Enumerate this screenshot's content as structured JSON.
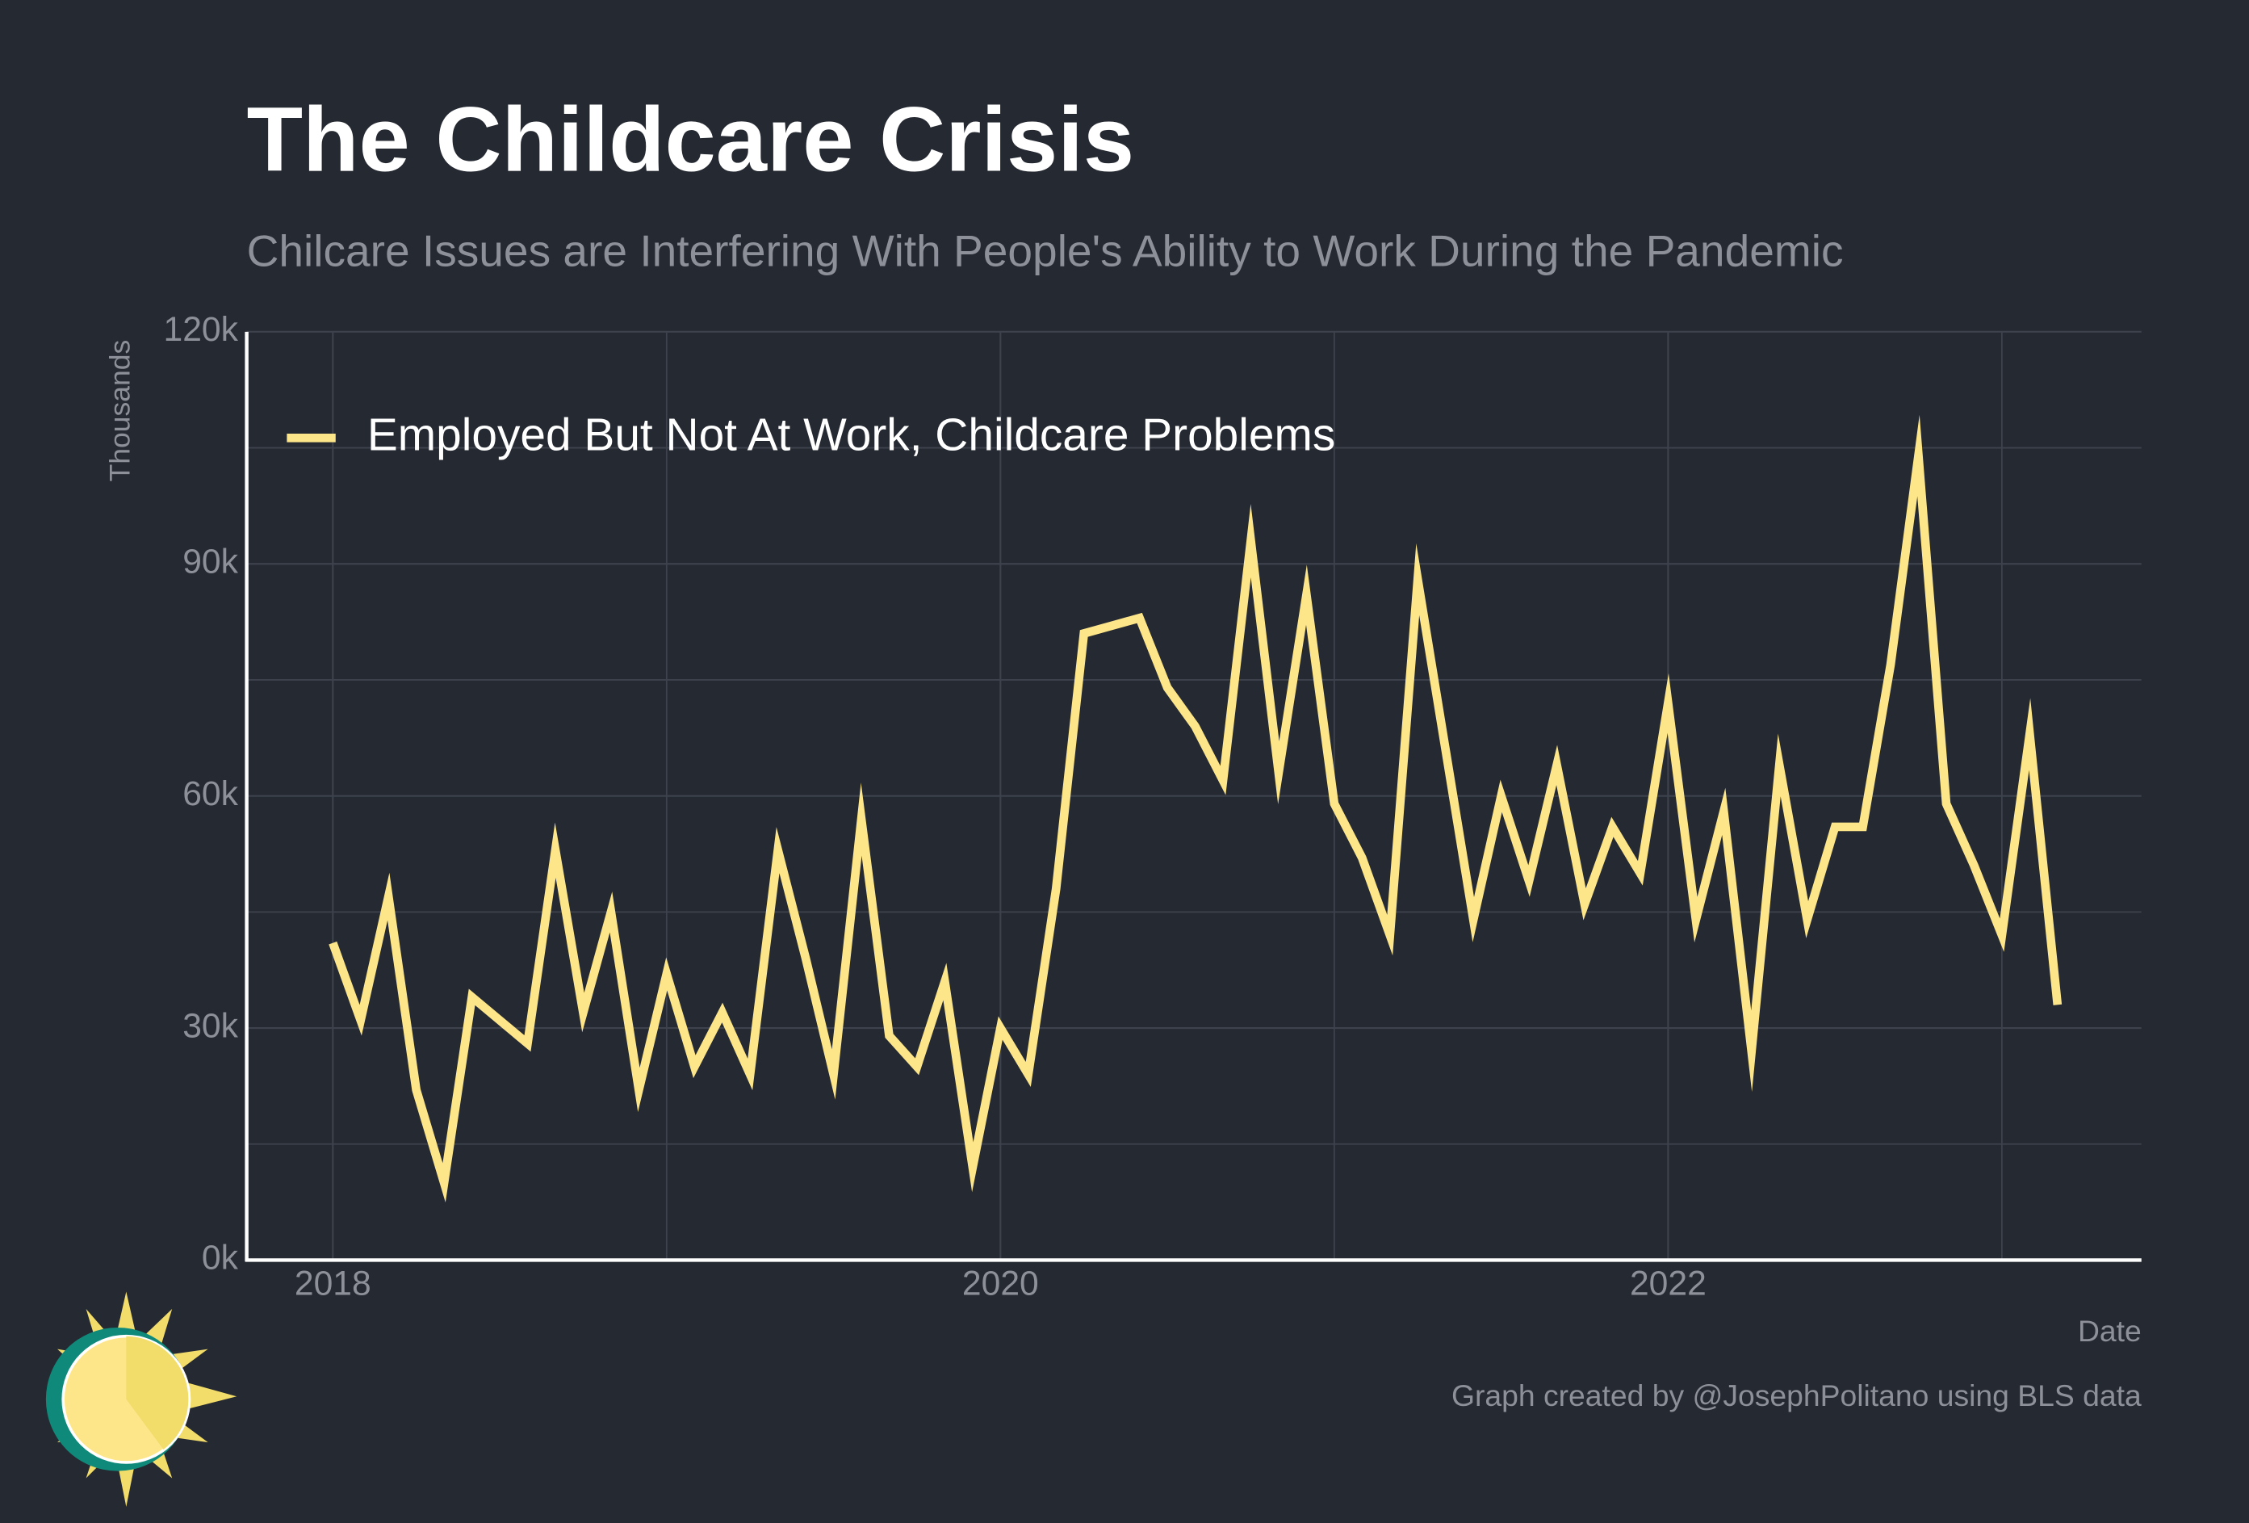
{
  "chart_data": {
    "type": "line",
    "title": "The Childcare Crisis",
    "subtitle": "Chilcare Issues are Interfering With People's Ability to Work During the Pandemic",
    "y_label": "Thousands",
    "x_label": "Date",
    "caption": "Graph created by @JosephPolitano using BLS data",
    "legend": "upper left",
    "grid": true,
    "x": [
      2018,
      2018.0833,
      2018.1667,
      2018.25,
      2018.3333,
      2018.4167,
      2018.5,
      2018.5833,
      2018.6667,
      2018.75,
      2018.8333,
      2018.9167,
      2019,
      2019.0833,
      2019.1667,
      2019.25,
      2019.3333,
      2019.4167,
      2019.5,
      2019.5833,
      2019.6667,
      2019.75,
      2019.8333,
      2019.9167,
      2020,
      2020.0833,
      2020.1667,
      2020.25,
      2020.3333,
      2020.4167,
      2020.5,
      2020.5833,
      2020.6667,
      2020.75,
      2020.8333,
      2020.9167,
      2021,
      2021.0833,
      2021.1667,
      2021.25,
      2021.3333,
      2021.4167,
      2021.5,
      2021.5833,
      2021.6667,
      2021.75,
      2021.8333,
      2021.9167,
      2022,
      2022.0833,
      2022.1667,
      2022.25,
      2022.3333,
      2022.4167,
      2022.5,
      2022.5833,
      2022.6667,
      2022.75,
      2022.8333,
      2022.9167,
      2023,
      2023.0833,
      2023.1667
    ],
    "series": [
      {
        "name": "Employed But Not At Work, Childcare Problems",
        "color": "#fde68a",
        "values": [
          41000,
          31000,
          47000,
          22000,
          10000,
          34000,
          31000,
          28000,
          53000,
          32000,
          45000,
          22000,
          37000,
          25000,
          32000,
          24000,
          53000,
          39000,
          24000,
          57000,
          29000,
          25000,
          36000,
          12000,
          30000,
          24000,
          48000,
          81000,
          82000,
          83000,
          74000,
          69000,
          62000,
          93000,
          63000,
          86000,
          59000,
          52000,
          42000,
          88000,
          66000,
          44000,
          60000,
          49000,
          64000,
          46000,
          56000,
          50000,
          72000,
          44000,
          58000,
          27000,
          64000,
          44000,
          56000,
          56000,
          77000,
          104000,
          59000,
          51000,
          42000,
          68000,
          33000
        ]
      }
    ],
    "xlim": [
      2017.742,
      2023.418
    ],
    "xticks": [
      2018,
      2020,
      2022
    ],
    "x_minor_ticks": [
      2019,
      2021,
      2023
    ],
    "ylim": [
      0,
      120000
    ],
    "yticks": [
      {
        "value": 0,
        "label": "0k"
      },
      {
        "value": 30000,
        "label": "30k"
      },
      {
        "value": 60000,
        "label": "60k"
      },
      {
        "value": 90000,
        "label": "90k"
      },
      {
        "value": 120000,
        "label": "120k"
      }
    ],
    "y_minor_ticks": [
      15000,
      45000,
      75000,
      105000
    ]
  }
}
